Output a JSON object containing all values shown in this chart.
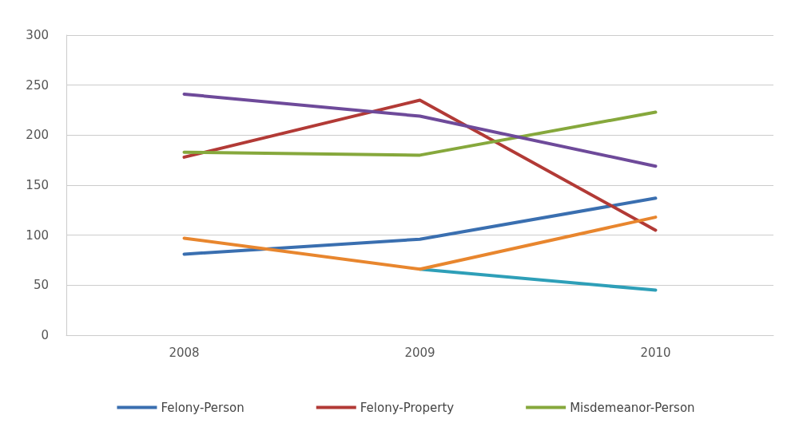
{
  "chart_data": {
    "type": "line",
    "categories": [
      "2008",
      "2009",
      "2010"
    ],
    "series": [
      {
        "name": "Felony-Person",
        "color": "#3a6fb0",
        "values": [
          81,
          96,
          137
        ]
      },
      {
        "name": "Felony-Property",
        "color": "#b23a36",
        "values": [
          178,
          235,
          105
        ]
      },
      {
        "name": "Misdemeanor-Person",
        "color": "#86a83c",
        "values": [
          183,
          180,
          223
        ]
      },
      {
        "color": "#6e4a9a",
        "values": [
          241,
          219,
          169
        ]
      },
      {
        "color": "#2e9fb8",
        "values": [
          null,
          66,
          45
        ]
      },
      {
        "color": "#e8862e",
        "values": [
          97,
          66,
          118
        ]
      }
    ],
    "ylim": [
      0,
      300
    ],
    "yticks": [
      0,
      50,
      100,
      150,
      200,
      250,
      300
    ],
    "grid": "y",
    "legend": "bottom",
    "marker": "none",
    "line_style": "solid"
  }
}
